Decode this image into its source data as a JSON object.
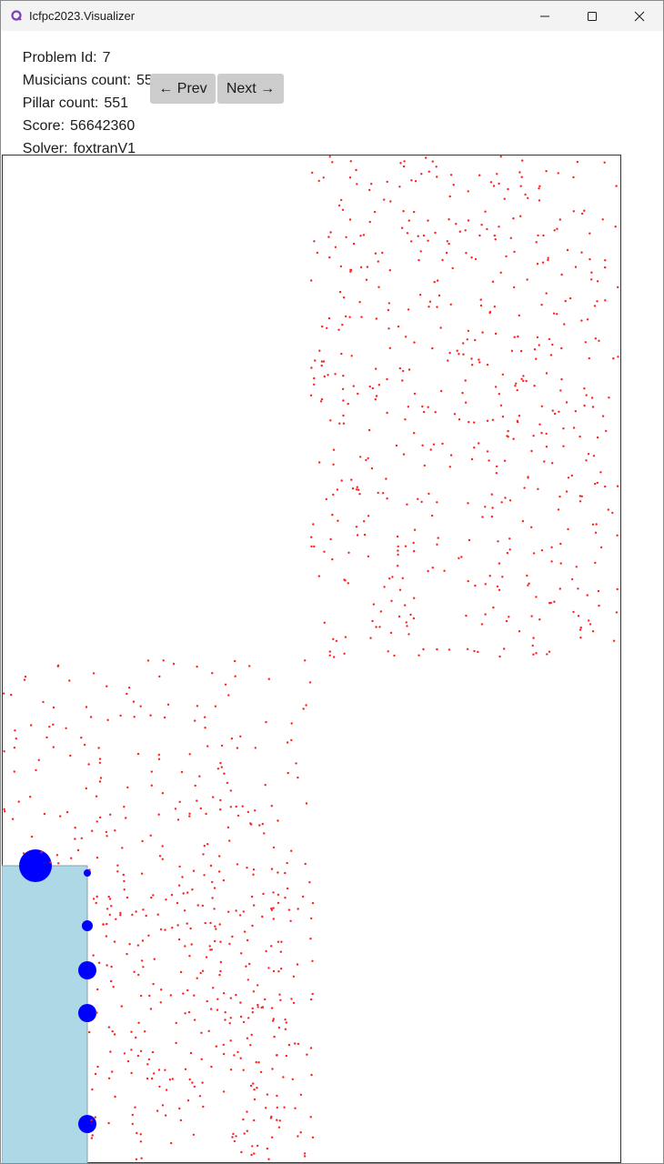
{
  "window": {
    "title": "Icfpc2023.Visualizer",
    "icons": {
      "app": "app-icon",
      "minimize": "minimize-icon",
      "maximize": "maximize-icon",
      "close": "close-icon"
    }
  },
  "info": {
    "problem_id": {
      "label": "Problem Id:",
      "value": "7"
    },
    "musicians": {
      "label": "Musicians count:",
      "value": "551"
    },
    "pillars": {
      "label": "Pillar count:",
      "value": "551"
    },
    "score": {
      "label": "Score:",
      "value": "56642360"
    },
    "solver": {
      "label": "Solver:",
      "value": "foxtranV1"
    }
  },
  "nav": {
    "prev_label": "← Prev",
    "next_label": "Next →"
  },
  "colors": {
    "attendee": "#ff2020",
    "stage_fill": "#add8e6",
    "musician": "#0000ff",
    "room_border": "#333333"
  }
}
